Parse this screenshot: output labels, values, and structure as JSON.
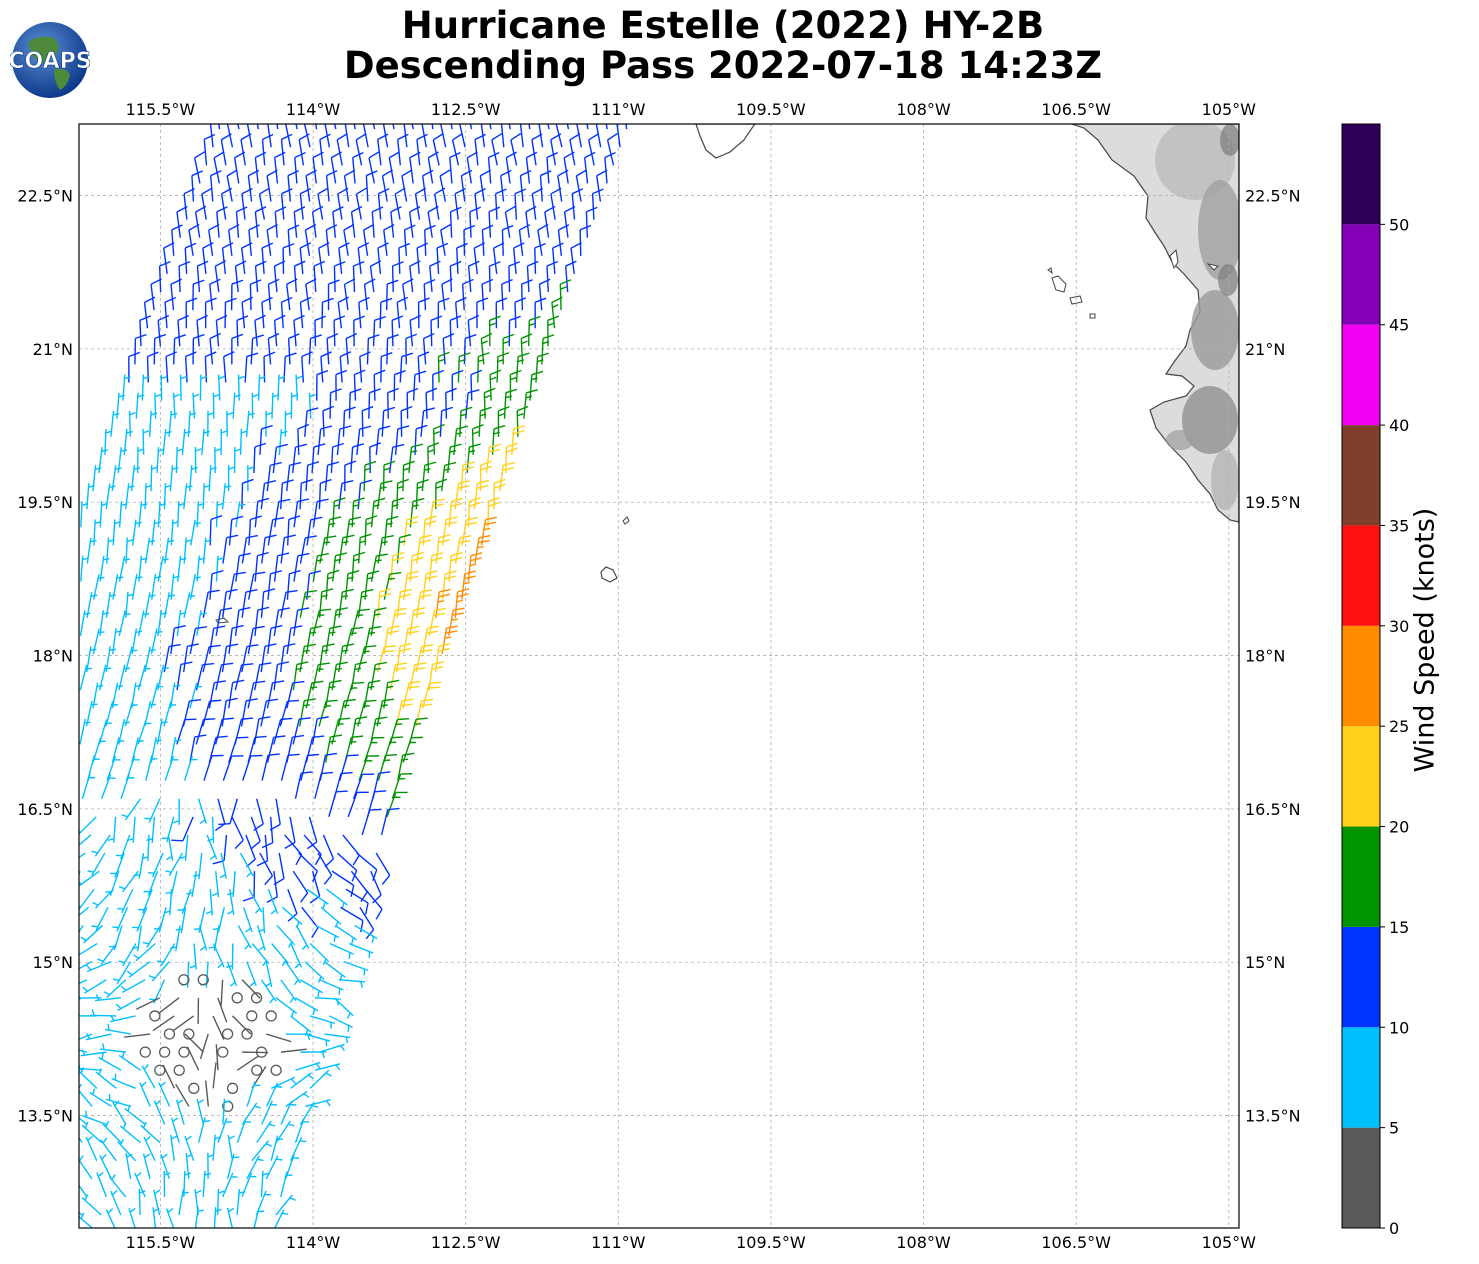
{
  "title": {
    "line1": "Hurricane Estelle (2022) HY-2B",
    "line2": "Descending Pass 2022-07-18 14:23Z"
  },
  "logo": {
    "text": "COAPS"
  },
  "map": {
    "lon_range": [
      -116.3,
      -104.9
    ],
    "lat_range": [
      12.4,
      23.2
    ],
    "lon_ticks": [
      {
        "lon": -115.5,
        "label": "115.5°W"
      },
      {
        "lon": -114.0,
        "label": "114°W"
      },
      {
        "lon": -112.5,
        "label": "112.5°W"
      },
      {
        "lon": -111.0,
        "label": "111°W"
      },
      {
        "lon": -109.5,
        "label": "109.5°W"
      },
      {
        "lon": -108.0,
        "label": "108°W"
      },
      {
        "lon": -106.5,
        "label": "106.5°W"
      },
      {
        "lon": -105.0,
        "label": "105°W"
      }
    ],
    "lat_ticks": [
      {
        "lat": 22.5,
        "label": "22.5°N"
      },
      {
        "lat": 21.0,
        "label": "21°N"
      },
      {
        "lat": 19.5,
        "label": "19.5°N"
      },
      {
        "lat": 18.0,
        "label": "18°N"
      },
      {
        "lat": 16.5,
        "label": "16.5°N"
      },
      {
        "lat": 15.0,
        "label": "15°N"
      },
      {
        "lat": 13.5,
        "label": "13.5°N"
      }
    ],
    "gridlines": true
  },
  "colorbar": {
    "title": "Wind Speed (knots)",
    "ticks": [
      "0",
      "5",
      "10",
      "15",
      "20",
      "25",
      "30",
      "35",
      "40",
      "45",
      "50"
    ],
    "bins": [
      {
        "min": 0,
        "max": 5,
        "color": "#595959"
      },
      {
        "min": 5,
        "max": 10,
        "color": "#00bfff"
      },
      {
        "min": 10,
        "max": 15,
        "color": "#0033ff"
      },
      {
        "min": 15,
        "max": 20,
        "color": "#009400"
      },
      {
        "min": 20,
        "max": 25,
        "color": "#ffd11a"
      },
      {
        "min": 25,
        "max": 30,
        "color": "#ff8c00"
      },
      {
        "min": 30,
        "max": 35,
        "color": "#ff1111"
      },
      {
        "min": 35,
        "max": 40,
        "color": "#7f3f2a"
      },
      {
        "min": 40,
        "max": 45,
        "color": "#f300f3"
      },
      {
        "min": 45,
        "max": 50,
        "color": "#8400b8"
      },
      {
        "min": 50,
        "max": 55,
        "color": "#2d0058"
      }
    ]
  },
  "chart_data": {
    "type": "wind-barbs",
    "units": "knots",
    "swath_note": "HY-2B descending scatterometer swath; storm centre near 14.2N 115.0W",
    "swath_edge_east": [
      {
        "lat": 23.2,
        "lon": -110.9
      },
      {
        "lat": 21.0,
        "lon": -111.7
      },
      {
        "lat": 19.2,
        "lon": -112.3
      },
      {
        "lat": 17.0,
        "lon": -113.1
      },
      {
        "lat": 15.0,
        "lon": -113.7
      },
      {
        "lat": 13.5,
        "lon": -114.1
      },
      {
        "lat": 12.4,
        "lon": -114.4
      }
    ]
  }
}
